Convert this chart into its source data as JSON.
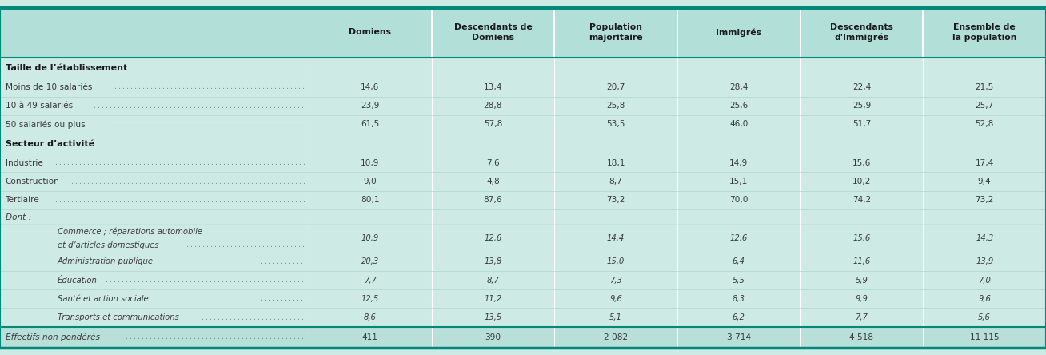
{
  "top_border_color": "#00897b",
  "header_bg": "#b2dfd8",
  "body_bg": "#ceeae4",
  "footer_bg": "#b8dfd8",
  "separator_color": "#ffffff",
  "thin_line_color": "#aacfca",
  "section_text_color": "#1a1a1a",
  "normal_text_color": "#3a3a3a",
  "italic_text_color": "#3a3a3a",
  "dot_color": "#7a9a96",
  "header_text_color": "#1a1a1a",
  "columns": [
    "Domiens",
    "Descendants de\nDomiens",
    "Population\nmajoritaire",
    "Immigrés",
    "Descendants\nd'Immigrés",
    "Ensemble de\nla population"
  ],
  "rows": [
    {
      "type": "section_header",
      "label": "Taille de l’établissement",
      "values": [
        "",
        "",
        "",
        "",
        "",
        ""
      ]
    },
    {
      "type": "data",
      "label": "Moins de 10 salariés",
      "values": [
        "14,6",
        "13,4",
        "20,7",
        "28,4",
        "22,4",
        "21,5"
      ]
    },
    {
      "type": "data",
      "label": "10 à 49 salariés",
      "values": [
        "23,9",
        "28,8",
        "25,8",
        "25,6",
        "25,9",
        "25,7"
      ]
    },
    {
      "type": "data",
      "label": "50 salariés ou plus",
      "values": [
        "61,5",
        "57,8",
        "53,5",
        "46,0",
        "51,7",
        "52,8"
      ]
    },
    {
      "type": "section_header",
      "label": "Secteur d’activité",
      "values": [
        "",
        "",
        "",
        "",
        "",
        ""
      ]
    },
    {
      "type": "data",
      "label": "Industrie",
      "values": [
        "10,9",
        "7,6",
        "18,1",
        "14,9",
        "15,6",
        "17,4"
      ]
    },
    {
      "type": "data",
      "label": "Construction",
      "values": [
        "9,0",
        "4,8",
        "8,7",
        "15,1",
        "10,2",
        "9,4"
      ]
    },
    {
      "type": "data",
      "label": "Tertiaire",
      "values": [
        "80,1",
        "87,6",
        "73,2",
        "70,0",
        "74,2",
        "73,2"
      ]
    },
    {
      "type": "italic_plain",
      "label": "Dont :",
      "values": [
        "",
        "",
        "",
        "",
        "",
        ""
      ]
    },
    {
      "type": "italic_indented",
      "label": "Commerce ; réparations automobile\net d’articles domestiques",
      "values": [
        "10,9",
        "12,6",
        "14,4",
        "12,6",
        "15,6",
        "14,3"
      ]
    },
    {
      "type": "italic_indented",
      "label": "Administration publique",
      "values": [
        "20,3",
        "13,8",
        "15,0",
        "6,4",
        "11,6",
        "13,9"
      ]
    },
    {
      "type": "italic_indented",
      "label": "Éducation",
      "values": [
        "7,7",
        "8,7",
        "7,3",
        "5,5",
        "5,9",
        "7,0"
      ]
    },
    {
      "type": "italic_indented",
      "label": "Santé et action sociale",
      "values": [
        "12,5",
        "11,2",
        "9,6",
        "8,3",
        "9,9",
        "9,6"
      ]
    },
    {
      "type": "italic_indented",
      "label": "Transports et communications",
      "values": [
        "8,6",
        "13,5",
        "5,1",
        "6,2",
        "7,7",
        "5,6"
      ]
    },
    {
      "type": "footer",
      "label": "Effectifs non pondérés",
      "values": [
        "411",
        "390",
        "2 082",
        "3 714",
        "4 518",
        "11 115"
      ]
    }
  ],
  "fig_width": 13.08,
  "fig_height": 4.44
}
